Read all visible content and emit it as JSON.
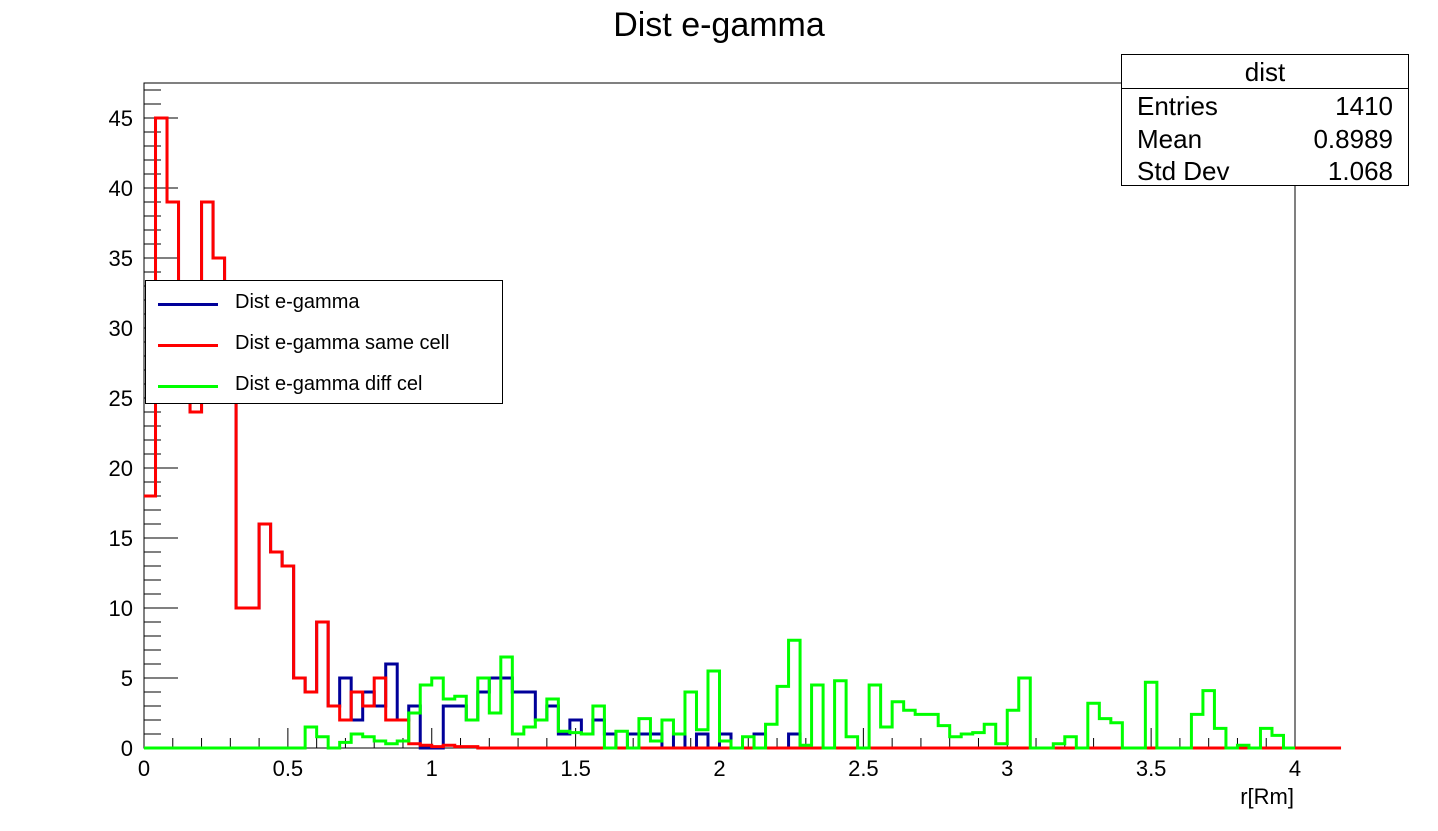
{
  "chart_data": {
    "type": "histogram",
    "title": "Dist e-gamma",
    "xlabel": "r[Rm]",
    "ylabel": "",
    "xlim": [
      0,
      4
    ],
    "ylim": [
      0,
      47.5
    ],
    "bin_width": 0.04,
    "x_ticks": [
      "0",
      "0.5",
      "1",
      "1.5",
      "2",
      "2.5",
      "3",
      "3.5",
      "4"
    ],
    "y_ticks": [
      "0",
      "5",
      "10",
      "15",
      "20",
      "25",
      "30",
      "35",
      "40",
      "45"
    ],
    "stats": {
      "name": "dist",
      "rows": [
        {
          "label": "Entries",
          "value": "1410"
        },
        {
          "label": "Mean",
          "value": "0.8989"
        },
        {
          "label": "Std Dev",
          "value": "1.068"
        }
      ]
    },
    "legend": [
      {
        "label": "Dist e-gamma",
        "color": "#000099"
      },
      {
        "label": "Dist e-gamma same cell",
        "color": "#ff0000"
      },
      {
        "label": "Dist e-gamma diff cel",
        "color": "#00ff00"
      }
    ],
    "series": [
      {
        "name": "Dist e-gamma",
        "color": "#000099",
        "values": [
          18,
          45,
          39,
          33,
          24,
          39,
          35,
          26,
          10,
          10,
          16,
          14,
          13,
          5,
          4,
          9,
          3,
          5,
          2,
          4,
          3,
          6,
          2,
          3,
          0,
          0,
          3,
          3,
          2,
          4,
          5,
          5,
          4,
          4,
          2,
          3,
          1,
          2,
          1,
          2,
          1,
          0,
          1,
          1,
          1,
          0,
          1,
          0,
          1,
          0,
          1,
          0,
          0,
          1,
          0,
          0,
          1,
          0,
          0,
          0,
          0,
          0,
          0,
          0,
          0,
          0,
          0,
          0,
          0,
          0,
          0,
          0,
          0,
          0,
          0,
          0,
          0,
          0,
          0,
          0,
          0,
          0,
          0,
          0,
          0,
          0,
          0,
          0,
          0,
          0,
          0,
          0,
          0,
          0,
          0,
          0,
          0,
          0,
          0,
          0
        ]
      },
      {
        "name": "Dist e-gamma same cell",
        "color": "#ff0000",
        "values": [
          18,
          45,
          39,
          33,
          24,
          39,
          35,
          26,
          10,
          10,
          16,
          14,
          13,
          5,
          4,
          9,
          3,
          2,
          4,
          3,
          5,
          2,
          2,
          0.3,
          0.2,
          0.1,
          0.2,
          0.1,
          0.1,
          0,
          0,
          0,
          0,
          0,
          0,
          0,
          0,
          0,
          0,
          0,
          0,
          0,
          0,
          0,
          0,
          0,
          0,
          0,
          0,
          0,
          0,
          0,
          0,
          0,
          0,
          0,
          0,
          0,
          0,
          0,
          0,
          0,
          0,
          0,
          0,
          0,
          0,
          0,
          0,
          0,
          0,
          0,
          0,
          0,
          0,
          0,
          0,
          0,
          0,
          0,
          0,
          0,
          0,
          0,
          0,
          0,
          0,
          0,
          0,
          0,
          0,
          0,
          0,
          0,
          0,
          0,
          0,
          0,
          0,
          0,
          0,
          0,
          0,
          0
        ]
      },
      {
        "name": "Dist e-gamma diff cel",
        "color": "#00ff00",
        "values": [
          0,
          0,
          0,
          0,
          0,
          0,
          0,
          0,
          0,
          0,
          0,
          0,
          0,
          0,
          1.5,
          0.8,
          0,
          0.4,
          1,
          0.8,
          0.5,
          0.3,
          0.5,
          2.5,
          4.5,
          5,
          3.5,
          3.7,
          2,
          5,
          2.5,
          6.5,
          1,
          1.5,
          2,
          3.5,
          1.2,
          1.1,
          1,
          3,
          0,
          1.2,
          0,
          2.1,
          0.5,
          2,
          1,
          4,
          1.3,
          5.5,
          0.5,
          0,
          0.8,
          0,
          1.7,
          4.4,
          7.7,
          0.2,
          4.5,
          0,
          4.8,
          0.8,
          0,
          4.5,
          1.5,
          3.3,
          2.7,
          2.4,
          2.4,
          1.6,
          0.8,
          1,
          1.1,
          1.7,
          0.3,
          2.7,
          5,
          0,
          0,
          0.3,
          0.8,
          0,
          3.2,
          2.1,
          1.8,
          0,
          0,
          4.7,
          0,
          0,
          0,
          2.4,
          4.1,
          1.4,
          0,
          0.2,
          0,
          1.4,
          0.9,
          0
        ]
      }
    ]
  }
}
